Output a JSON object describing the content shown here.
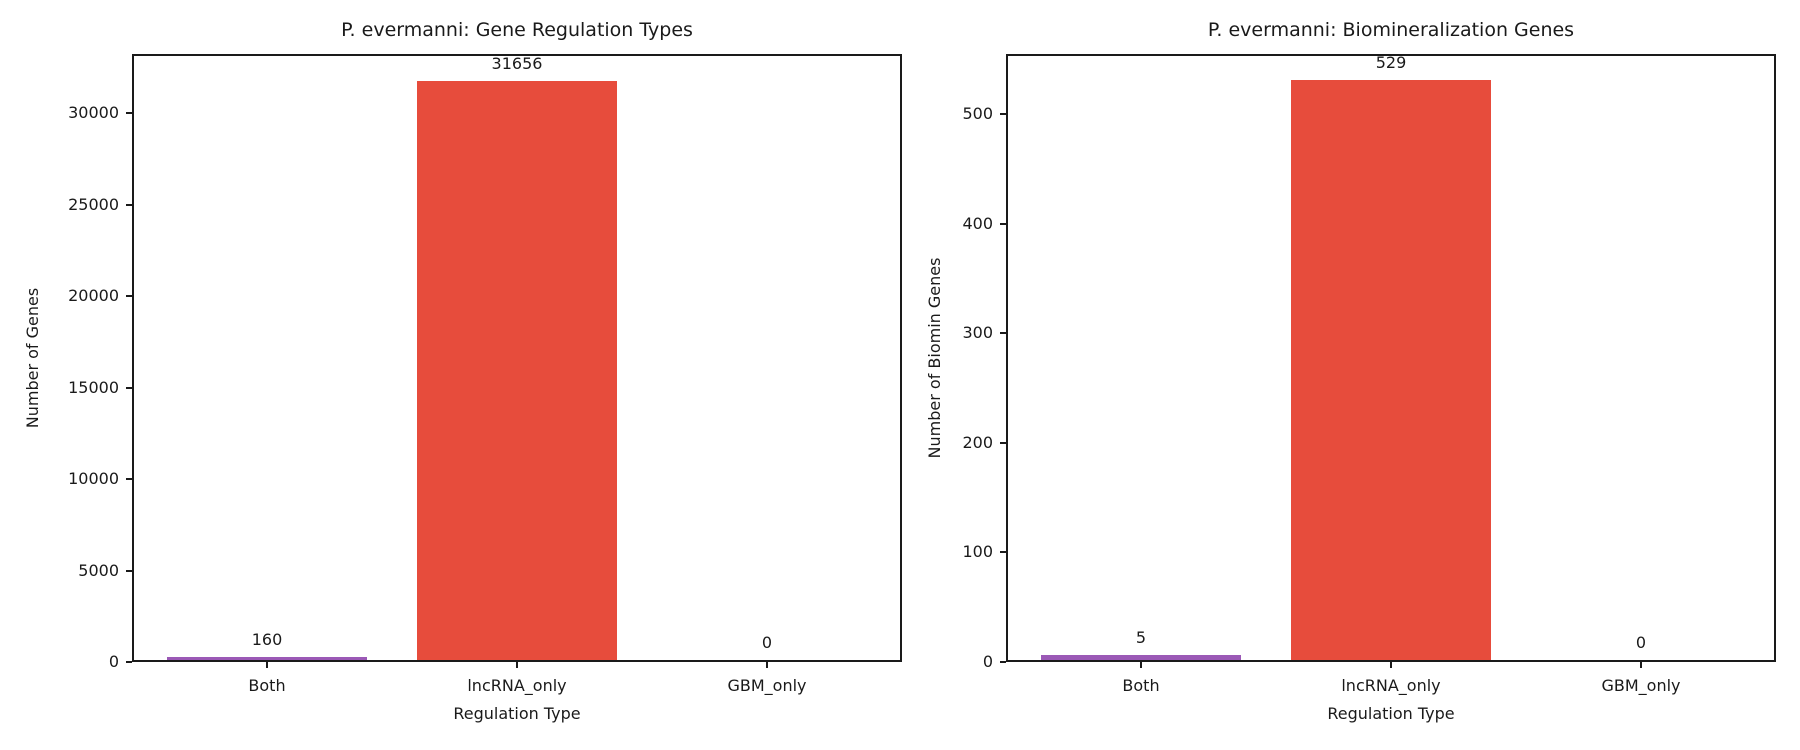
{
  "figure": {
    "background": "#ffffff",
    "text_color": "#1a1a1a",
    "accent_red": "#e74c3c",
    "accent_purple": "#9b59b6"
  },
  "chart_data": [
    {
      "type": "bar",
      "title": "P. evermanni: Gene Regulation Types",
      "xlabel": "Regulation Type",
      "ylabel": "Number of Genes",
      "categories": [
        "Both",
        "lncRNA_only",
        "GBM_only"
      ],
      "values": [
        160,
        31656,
        0
      ],
      "bar_labels": [
        "160",
        "31656",
        "0"
      ],
      "bar_colors": [
        "#9b59b6",
        "#e74c3c",
        "#9b59b6"
      ],
      "yticks": [
        0,
        5000,
        10000,
        15000,
        20000,
        25000,
        30000
      ],
      "ytick_labels": [
        "0",
        "5000",
        "10000",
        "15000",
        "20000",
        "25000",
        "30000"
      ],
      "ylim": [
        0,
        33240
      ],
      "grid": false,
      "legend_position": "none"
    },
    {
      "type": "bar",
      "title": "P. evermanni: Biomineralization Genes",
      "xlabel": "Regulation Type",
      "ylabel": "Number of Biomin Genes",
      "categories": [
        "Both",
        "lncRNA_only",
        "GBM_only"
      ],
      "values": [
        5,
        529,
        0
      ],
      "bar_labels": [
        "5",
        "529",
        "0"
      ],
      "bar_colors": [
        "#9b59b6",
        "#e74c3c",
        "#9b59b6"
      ],
      "yticks": [
        0,
        100,
        200,
        300,
        400,
        500
      ],
      "ytick_labels": [
        "0",
        "100",
        "200",
        "300",
        "400",
        "500"
      ],
      "ylim": [
        0,
        555
      ],
      "grid": false,
      "legend_position": "none"
    }
  ]
}
